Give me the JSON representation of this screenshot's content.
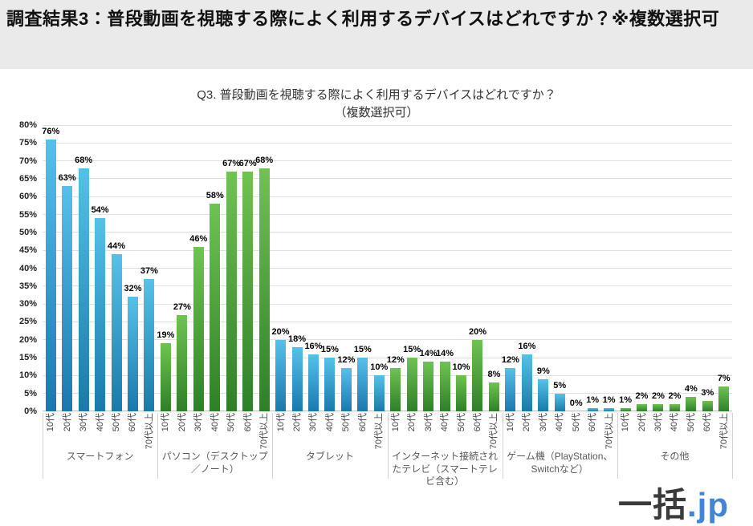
{
  "header": {
    "title": "調査結果3：普段動画を視聴する際によく利用するデバイスはどれですか？※複数選択可"
  },
  "chart_data": {
    "type": "bar",
    "title": "Q3. 普段動画を視聴する際によく利用するデバイスはどれですか？",
    "subtitle": "（複数選択可）",
    "ylabel": "",
    "xlabel": "",
    "ylim": [
      0,
      80
    ],
    "ytick_step": 5,
    "ytick_suffix": "%",
    "value_suffix": "%",
    "grid": true,
    "legend": false,
    "categories": [
      "10代",
      "20代",
      "30代",
      "40代",
      "50代",
      "60代",
      "70代以上"
    ],
    "groups": [
      {
        "label": "スマートフォン",
        "palette": "blue",
        "values": [
          76,
          63,
          68,
          54,
          44,
          32,
          37
        ]
      },
      {
        "label": "パソコン（デスクトップ／ノート）",
        "palette": "green",
        "values": [
          19,
          27,
          46,
          58,
          67,
          67,
          68
        ]
      },
      {
        "label": "タブレット",
        "palette": "blue",
        "values": [
          20,
          18,
          16,
          15,
          12,
          15,
          10
        ]
      },
      {
        "label": "インターネット接続されたテレビ（スマートテレビ含む）",
        "palette": "green",
        "values": [
          12,
          15,
          14,
          14,
          10,
          20,
          8
        ]
      },
      {
        "label": "ゲーム機（PlayStation、Switchなど）",
        "palette": "blue",
        "values": [
          12,
          16,
          9,
          5,
          0,
          1,
          1
        ]
      },
      {
        "label": "その他",
        "palette": "green",
        "values": [
          1,
          2,
          2,
          2,
          4,
          3,
          7
        ]
      }
    ]
  },
  "colors": {
    "bar_blue_top": "#55c1ea",
    "bar_blue_bottom": "#1a79ac",
    "bar_green_top": "#6fc351",
    "bar_green_bottom": "#2e8027",
    "header_bg": "#eaeaea",
    "grid": "#e0e0e0",
    "logo_dark": "#3a3a3a",
    "logo_blue": "#4285d7"
  },
  "logo": {
    "text_dark": "一括",
    "text_blue": ".jp"
  }
}
